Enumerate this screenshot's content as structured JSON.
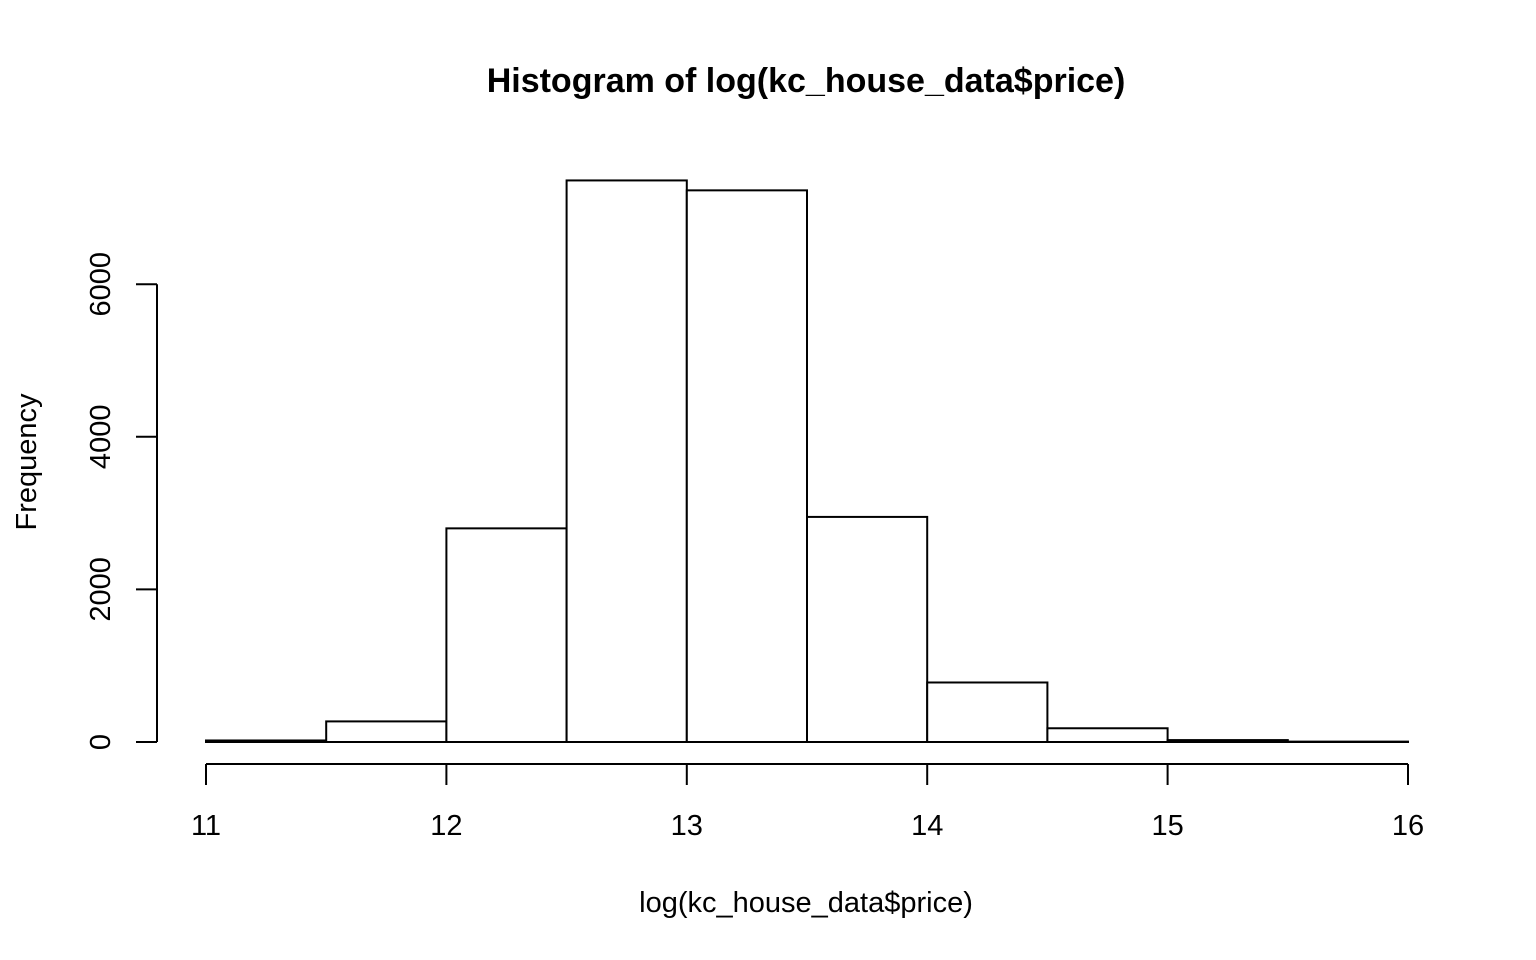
{
  "chart_data": {
    "type": "bar",
    "title": "Histogram of log(kc_house_data$price)",
    "xlabel": "log(kc_house_data$price)",
    "ylabel": "Frequency",
    "bins": [
      {
        "from": 11.0,
        "to": 11.5,
        "count": 20
      },
      {
        "from": 11.5,
        "to": 12.0,
        "count": 270
      },
      {
        "from": 12.0,
        "to": 12.5,
        "count": 2800
      },
      {
        "from": 12.5,
        "to": 13.0,
        "count": 7360
      },
      {
        "from": 13.0,
        "to": 13.5,
        "count": 7230
      },
      {
        "from": 13.5,
        "to": 14.0,
        "count": 2950
      },
      {
        "from": 14.0,
        "to": 14.5,
        "count": 780
      },
      {
        "from": 14.5,
        "to": 15.0,
        "count": 180
      },
      {
        "from": 15.0,
        "to": 15.5,
        "count": 25
      },
      {
        "from": 15.5,
        "to": 16.0,
        "count": 5
      }
    ],
    "xlim": [
      11,
      16
    ],
    "ylim": [
      0,
      7400
    ],
    "x_ticks": [
      "11",
      "12",
      "13",
      "14",
      "15",
      "16"
    ],
    "y_ticks": [
      "0",
      "2000",
      "4000",
      "6000"
    ],
    "grid": false,
    "legend": "none",
    "bar_fill": "#ffffff",
    "bar_stroke": "#000000"
  }
}
